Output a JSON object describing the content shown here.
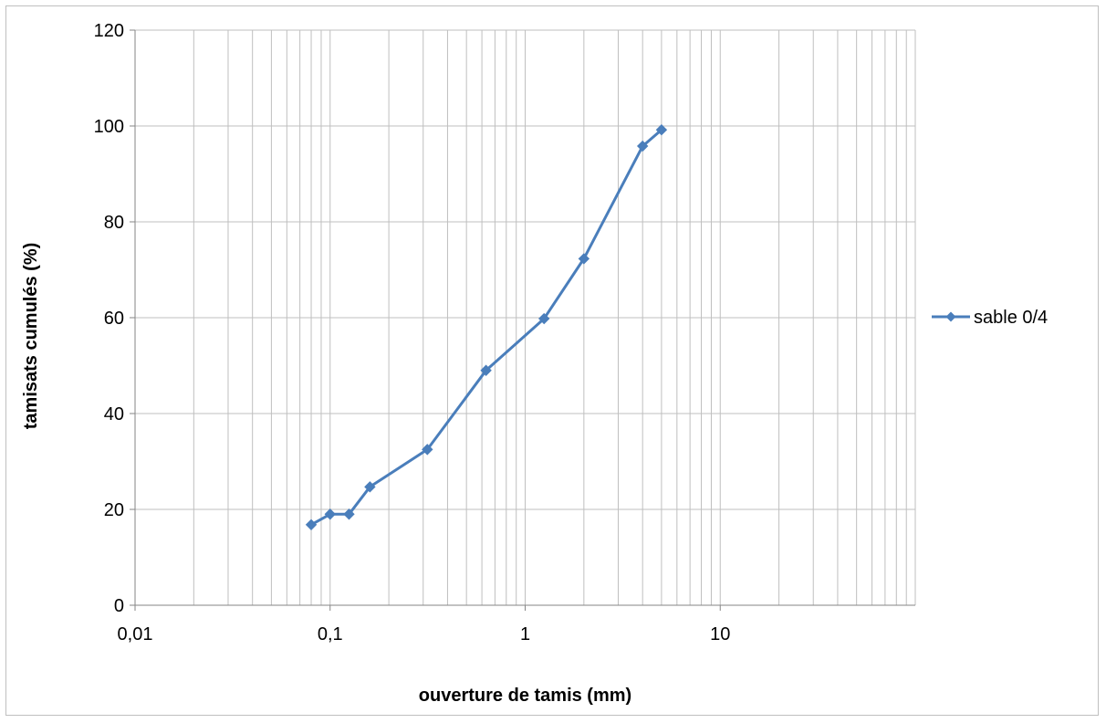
{
  "chart_data": {
    "type": "line",
    "xscale": "log",
    "xlim": [
      0.01,
      100
    ],
    "ylim": [
      0,
      120
    ],
    "x_ticks": [
      {
        "value": 0.01,
        "label": "0,01"
      },
      {
        "value": 0.1,
        "label": "0,1"
      },
      {
        "value": 1,
        "label": "1"
      },
      {
        "value": 10,
        "label": "10"
      }
    ],
    "y_ticks": [
      {
        "value": 0,
        "label": "0"
      },
      {
        "value": 20,
        "label": "20"
      },
      {
        "value": 40,
        "label": "40"
      },
      {
        "value": 60,
        "label": "60"
      },
      {
        "value": 80,
        "label": "80"
      },
      {
        "value": 100,
        "label": "100"
      },
      {
        "value": 120,
        "label": "120"
      }
    ],
    "xlabel": "ouverture de tamis (mm)",
    "ylabel": "tamisats cumulés (%)",
    "grid": true,
    "legend_position": "right",
    "series": [
      {
        "name": "sable 0/4",
        "color": "#4a7ebb",
        "marker": "diamond",
        "x": [
          0.08,
          0.1,
          0.125,
          0.16,
          0.315,
          0.63,
          1.25,
          2,
          4,
          5
        ],
        "y": [
          16.8,
          19.0,
          19.0,
          24.7,
          32.5,
          49.0,
          59.8,
          72.3,
          95.8,
          99.2
        ]
      }
    ]
  }
}
